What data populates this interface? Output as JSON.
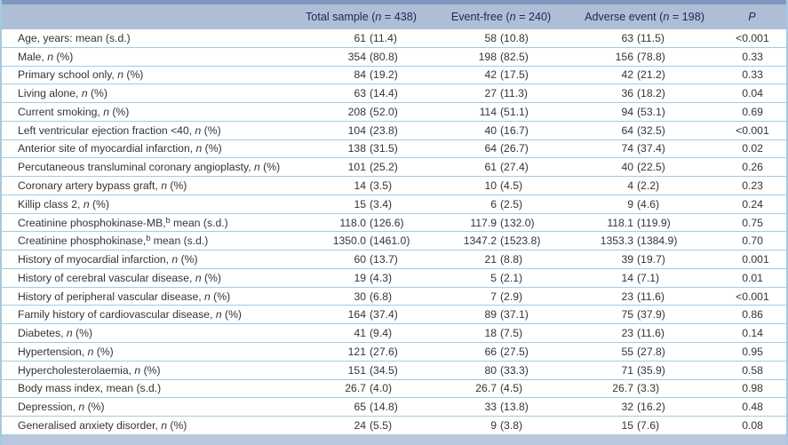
{
  "table": {
    "header": {
      "label": "",
      "total": {
        "pre": "Total sample (",
        "n": "n",
        "post": " = 438)"
      },
      "event_free": {
        "pre": "Event-free (",
        "n": "n",
        "post": " = 240)"
      },
      "adverse": {
        "pre": "Adverse event (",
        "n": "n",
        "post": " = 198)"
      },
      "p": "P"
    },
    "rows": [
      {
        "label": [
          {
            "t": "Age, years: mean (s.d.)"
          }
        ],
        "total": "61 (11.4)",
        "event_free": "58 (10.8)",
        "adverse": "63 (11.5)",
        "p": "<0.001"
      },
      {
        "label": [
          {
            "t": "Male, "
          },
          {
            "t": "n",
            "style": "italic"
          },
          {
            "t": " (%)"
          }
        ],
        "total": "354 (80.8)",
        "event_free": "198 (82.5)",
        "adverse": "156 (78.8)",
        "p": "0.33"
      },
      {
        "label": [
          {
            "t": "Primary school only, "
          },
          {
            "t": "n",
            "style": "italic"
          },
          {
            "t": " (%)"
          }
        ],
        "total": "84 (19.2)",
        "event_free": "42 (17.5)",
        "adverse": "42 (21.2)",
        "p": "0.33"
      },
      {
        "label": [
          {
            "t": "Living alone, "
          },
          {
            "t": "n",
            "style": "italic"
          },
          {
            "t": " (%)"
          }
        ],
        "total": "63 (14.4)",
        "event_free": "27 (11.3)",
        "adverse": "36 (18.2)",
        "p": "0.04"
      },
      {
        "label": [
          {
            "t": "Current smoking, "
          },
          {
            "t": "n",
            "style": "italic"
          },
          {
            "t": " (%)"
          }
        ],
        "total": "208 (52.0)",
        "event_free": "114 (51.1)",
        "adverse": "94 (53.1)",
        "p": "0.69"
      },
      {
        "label": [
          {
            "t": "Left ventricular ejection fraction <40, "
          },
          {
            "t": "n",
            "style": "italic"
          },
          {
            "t": " (%)"
          }
        ],
        "total": "104 (23.8)",
        "event_free": "40 (16.7)",
        "adverse": "64 (32.5)",
        "p": "<0.001"
      },
      {
        "label": [
          {
            "t": "Anterior site of myocardial infarction, "
          },
          {
            "t": "n",
            "style": "italic"
          },
          {
            "t": " (%)"
          }
        ],
        "total": "138 (31.5)",
        "event_free": "64 (26.7)",
        "adverse": "74 (37.4)",
        "p": "0.02"
      },
      {
        "label": [
          {
            "t": "Percutaneous transluminal coronary angioplasty, "
          },
          {
            "t": "n",
            "style": "italic"
          },
          {
            "t": " (%)"
          }
        ],
        "total": "101 (25.2)",
        "event_free": "61 (27.4)",
        "adverse": "40 (22.5)",
        "p": "0.26"
      },
      {
        "label": [
          {
            "t": "Coronary artery bypass graft, "
          },
          {
            "t": "n",
            "style": "italic"
          },
          {
            "t": " (%)"
          }
        ],
        "total": "14 (3.5)",
        "event_free": "10 (4.5)",
        "adverse": "4 (2.2)",
        "p": "0.23"
      },
      {
        "label": [
          {
            "t": "Killip class 2, "
          },
          {
            "t": "n",
            "style": "italic"
          },
          {
            "t": " (%)"
          }
        ],
        "total": "15 (3.4)",
        "event_free": "6 (2.5)",
        "adverse": "9 (4.6)",
        "p": "0.24"
      },
      {
        "label": [
          {
            "t": "Creatinine phosphokinase-MB,"
          },
          {
            "t": "b",
            "style": "sup"
          },
          {
            "t": " mean (s.d.)"
          }
        ],
        "total": "118.0 (126.6)",
        "event_free": "117.9 (132.0)",
        "adverse": "118.1 (119.9)",
        "p": "0.75"
      },
      {
        "label": [
          {
            "t": "Creatinine phosphokinase,"
          },
          {
            "t": "b",
            "style": "sup"
          },
          {
            "t": " mean (s.d.)"
          }
        ],
        "total": "1350.0 (1461.0)",
        "event_free": "1347.2 (1523.8)",
        "adverse": "1353.3 (1384.9)",
        "p": "0.70"
      },
      {
        "label": [
          {
            "t": "History of myocardial infarction, "
          },
          {
            "t": "n",
            "style": "italic"
          },
          {
            "t": " (%)"
          }
        ],
        "total": "60 (13.7)",
        "event_free": "21 (8.8)",
        "adverse": "39 (19.7)",
        "p": "0.001"
      },
      {
        "label": [
          {
            "t": "History of cerebral vascular disease, "
          },
          {
            "t": "n",
            "style": "italic"
          },
          {
            "t": " (%)"
          }
        ],
        "total": "19 (4.3)",
        "event_free": "5 (2.1)",
        "adverse": "14 (7.1)",
        "p": "0.01"
      },
      {
        "label": [
          {
            "t": "History of peripheral vascular disease, "
          },
          {
            "t": "n",
            "style": "italic"
          },
          {
            "t": " (%)"
          }
        ],
        "total": "30 (6.8)",
        "event_free": "7 (2.9)",
        "adverse": "23 (11.6)",
        "p": "<0.001"
      },
      {
        "label": [
          {
            "t": "Family history of cardiovascular disease, "
          },
          {
            "t": "n",
            "style": "italic"
          },
          {
            "t": " (%)"
          }
        ],
        "total": "164 (37.4)",
        "event_free": "89 (37.1)",
        "adverse": "75 (37.9)",
        "p": "0.86"
      },
      {
        "label": [
          {
            "t": "Diabetes, "
          },
          {
            "t": "n",
            "style": "italic"
          },
          {
            "t": " (%)"
          }
        ],
        "total": "41 (9.4)",
        "event_free": "18 (7.5)",
        "adverse": "23 (11.6)",
        "p": "0.14"
      },
      {
        "label": [
          {
            "t": "Hypertension, "
          },
          {
            "t": "n",
            "style": "italic"
          },
          {
            "t": " (%)"
          }
        ],
        "total": "121 (27.6)",
        "event_free": "66 (27.5)",
        "adverse": "55 (27.8)",
        "p": "0.95"
      },
      {
        "label": [
          {
            "t": "Hypercholesterolaemia, "
          },
          {
            "t": "n",
            "style": "italic"
          },
          {
            "t": " (%)"
          }
        ],
        "total": "151 (34.5)",
        "event_free": "80 (33.3)",
        "adverse": "71 (35.9)",
        "p": "0.58"
      },
      {
        "label": [
          {
            "t": "Body mass index, mean (s.d.)"
          }
        ],
        "total": "26.7 (4.0)",
        "event_free": "26.7 (4.5)",
        "adverse": "26.7 (3.3)",
        "p": "0.98"
      },
      {
        "label": [
          {
            "t": "Depression, "
          },
          {
            "t": "n",
            "style": "italic"
          },
          {
            "t": " (%)"
          }
        ],
        "total": "65 (14.8)",
        "event_free": "33 (13.8)",
        "adverse": "32 (16.2)",
        "p": "0.48"
      },
      {
        "label": [
          {
            "t": "Generalised anxiety disorder, "
          },
          {
            "t": "n",
            "style": "italic"
          },
          {
            "t": " (%)"
          }
        ],
        "total": "24 (5.5)",
        "event_free": "9 (3.8)",
        "adverse": "15 (7.6)",
        "p": "0.08"
      }
    ]
  },
  "colors": {
    "top_rule": "#7e97c0",
    "header_bg": "#aebed7",
    "row_line": "#a6c9e2",
    "bottom_band": "#b7c8dd",
    "header_text": "#1b2b4b",
    "body_text": "#343434"
  }
}
